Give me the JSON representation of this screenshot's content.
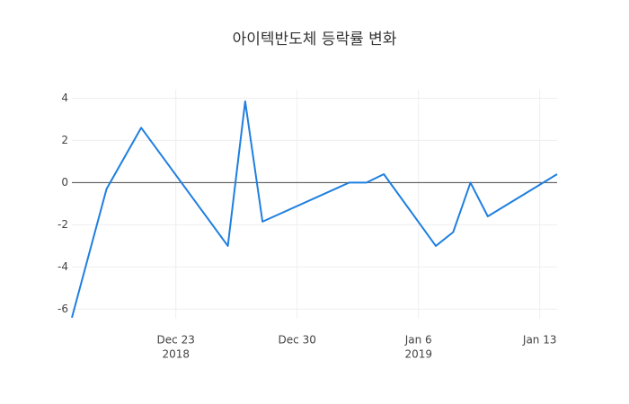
{
  "chart_data": {
    "type": "line",
    "title": "아이텍반도체 등락률 변화",
    "x": [
      "2018-12-17",
      "2018-12-19",
      "2018-12-21",
      "2018-12-26",
      "2018-12-27",
      "2018-12-28",
      "2019-01-02",
      "2019-01-03",
      "2019-01-04",
      "2019-01-07",
      "2019-01-08",
      "2019-01-09",
      "2019-01-10",
      "2019-01-14"
    ],
    "series": [
      {
        "color": "#1f7fe0",
        "values": [
          -6.4,
          -0.3,
          2.6,
          -3.0,
          3.85,
          -1.85,
          0,
          0,
          0.4,
          -3.0,
          -2.35,
          0,
          -1.6,
          0.4
        ]
      }
    ],
    "xlim": [
      "2018-12-17",
      "2019-01-14"
    ],
    "xticks": [
      {
        "value": "2018-12-23",
        "label": "Dec 23",
        "year": "2018"
      },
      {
        "value": "2018-12-30",
        "label": "Dec 30"
      },
      {
        "value": "2019-01-06",
        "label": "Jan 6",
        "year": "2019"
      },
      {
        "value": "2019-01-13",
        "label": "Jan 13"
      }
    ],
    "ylim": [
      -6.45,
      4.4
    ],
    "yticks": [
      -6,
      -4,
      -2,
      0,
      2,
      4
    ],
    "grid": true
  }
}
